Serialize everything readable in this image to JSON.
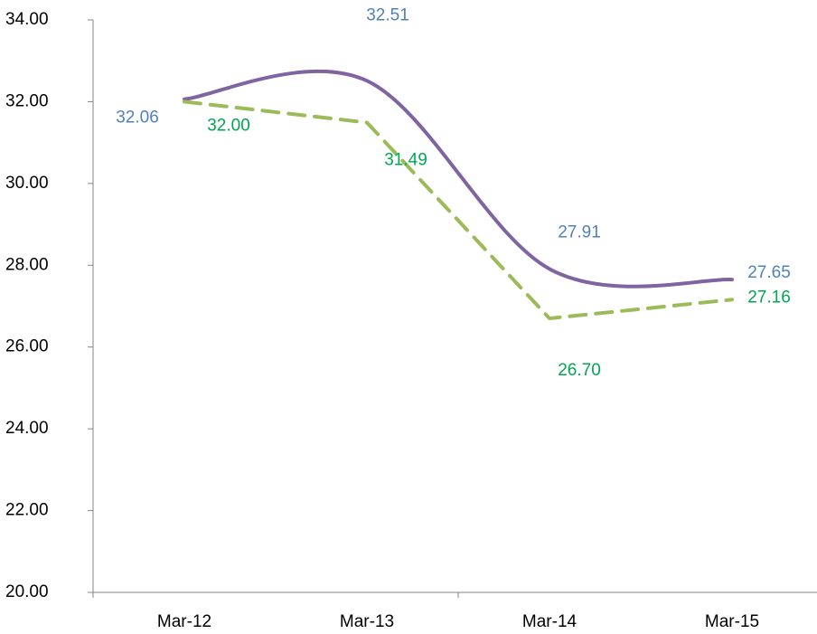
{
  "chart_data": {
    "type": "line",
    "categories": [
      "Mar-12",
      "Mar-13",
      "Mar-14",
      "Mar-15"
    ],
    "series": [
      {
        "color": "#8064a2",
        "dash": false,
        "smooth": true,
        "label_color": "#4f81bd",
        "values": [
          32.06,
          32.51,
          27.91,
          27.65
        ],
        "value_labels": [
          "32.06",
          "32.51",
          "27.91",
          "27.65"
        ]
      },
      {
        "color": "#9bbb59",
        "dash": true,
        "smooth": false,
        "label_color": "#00a651",
        "values": [
          32.0,
          31.49,
          26.7,
          27.16
        ],
        "value_labels": [
          "32.00",
          "31.49",
          "26.70",
          "27.16"
        ]
      }
    ],
    "ylim": [
      20,
      34
    ],
    "yticks": [
      {
        "value": 20,
        "label": "20.00"
      },
      {
        "value": 22,
        "label": "22.00"
      },
      {
        "value": 24,
        "label": "24.00"
      },
      {
        "value": 26,
        "label": "26.00"
      },
      {
        "value": 28,
        "label": "28.00"
      },
      {
        "value": 30,
        "label": "30.00"
      },
      {
        "value": 32,
        "label": "32.00"
      },
      {
        "value": 34,
        "label": "34.00"
      }
    ],
    "grid": false
  }
}
